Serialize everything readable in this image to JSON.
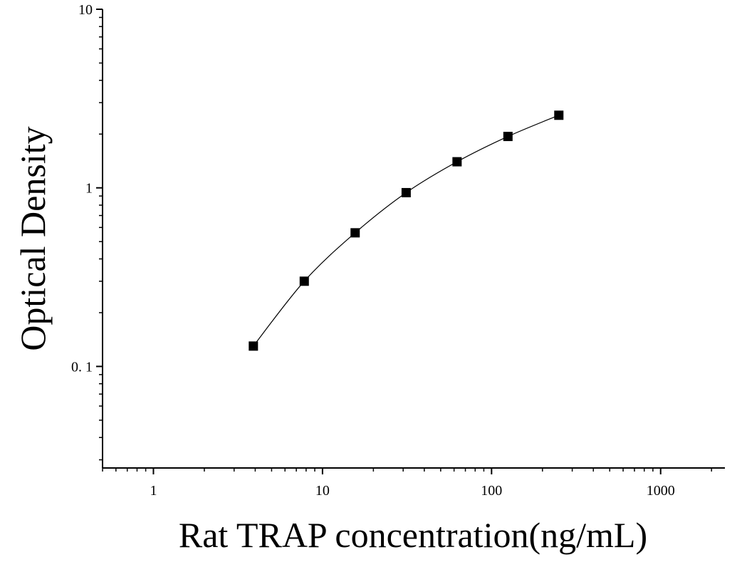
{
  "chart_data": {
    "type": "scatter",
    "x_scale": "log",
    "y_scale": "log",
    "xlabel": "Rat TRAP concentration(ng/mL)",
    "ylabel": "Optical Density",
    "xlim": [
      0.5,
      2400
    ],
    "ylim": [
      0.027,
      10
    ],
    "x_ticks": [
      {
        "value": 1,
        "label": "1"
      },
      {
        "value": 10,
        "label": "10"
      },
      {
        "value": 100,
        "label": "100"
      },
      {
        "value": 1000,
        "label": "1000"
      }
    ],
    "y_ticks": [
      {
        "value": 0.1,
        "label": "0. 1"
      },
      {
        "value": 1,
        "label": "1"
      },
      {
        "value": 10,
        "label": "10"
      }
    ],
    "series": [
      {
        "points": [
          {
            "x": 3.9,
            "y": 0.13
          },
          {
            "x": 7.8,
            "y": 0.3
          },
          {
            "x": 15.6,
            "y": 0.56
          },
          {
            "x": 31.25,
            "y": 0.94
          },
          {
            "x": 62.5,
            "y": 1.4
          },
          {
            "x": 125,
            "y": 1.94
          },
          {
            "x": 250,
            "y": 2.55
          }
        ],
        "marker": "square",
        "fit_curve": true
      }
    ],
    "grid": false,
    "legend": "none",
    "colors": {
      "marker": "#000000",
      "curve": "#000000",
      "axis": "#000000"
    }
  }
}
